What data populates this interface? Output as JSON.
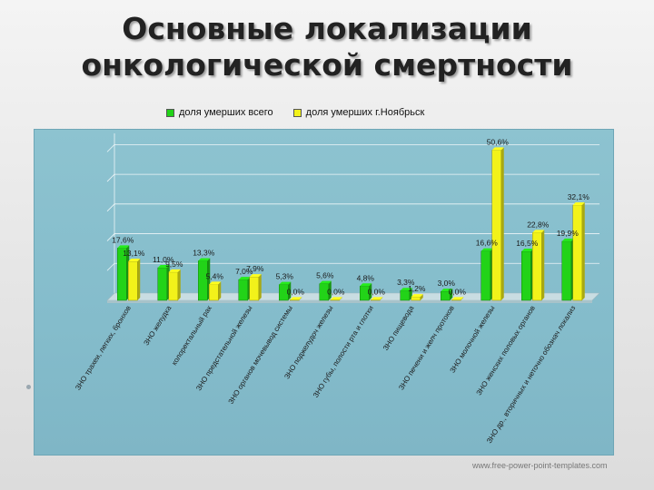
{
  "slide": {
    "title_line1": "Основные локализации",
    "title_line2": "онкологической смертности",
    "watermark": "www.free-power-point-templates.com"
  },
  "chart_data": {
    "type": "bar",
    "title": "",
    "xlabel": "",
    "ylabel": "",
    "ylim": [
      0,
      55
    ],
    "grid": true,
    "legend_position": "top",
    "categories": [
      "ЗНО трахеи, легких, бронхов",
      "ЗНО желудка",
      "колоректальный рак",
      "ЗНО предстательной железы",
      "ЗНО органов мочевывод системы",
      "ЗНО поджелудоч железы",
      "ЗНО губы, полости рта и глотки",
      "ЗНО пищевода",
      "ЗНО печени и желч протоков",
      "ЗНО молочной железы",
      "ЗНО женских половых органов",
      "ЗНО др., вторичных и неточно обознач локализ"
    ],
    "series": [
      {
        "name": "доля умерших всего",
        "color": "#22d318",
        "values": [
          17.6,
          11.0,
          13.3,
          7.0,
          5.3,
          5.6,
          4.8,
          3.3,
          3.0,
          16.6,
          16.5,
          19.9
        ],
        "labels": [
          "17,6%",
          "11,0%",
          "13,3%",
          "7,0%",
          "5,3%",
          "5,6%",
          "4,8%",
          "3,3%",
          "3,0%",
          "16,6%",
          "16,5%",
          "19,9%"
        ]
      },
      {
        "name": "доля умерших г.Ноябрьск",
        "color": "#f2f21a",
        "values": [
          13.1,
          9.5,
          5.4,
          7.9,
          0.0,
          0.0,
          0.0,
          1.2,
          0.0,
          50.6,
          22.8,
          32.1
        ],
        "labels": [
          "13,1%",
          "9,5%",
          "5,4%",
          "7,9%",
          "0,0%",
          "0,0%",
          "0,0%",
          "1,2%",
          "0,0%",
          "50,6%",
          "22,8%",
          "32,1%"
        ]
      }
    ]
  }
}
